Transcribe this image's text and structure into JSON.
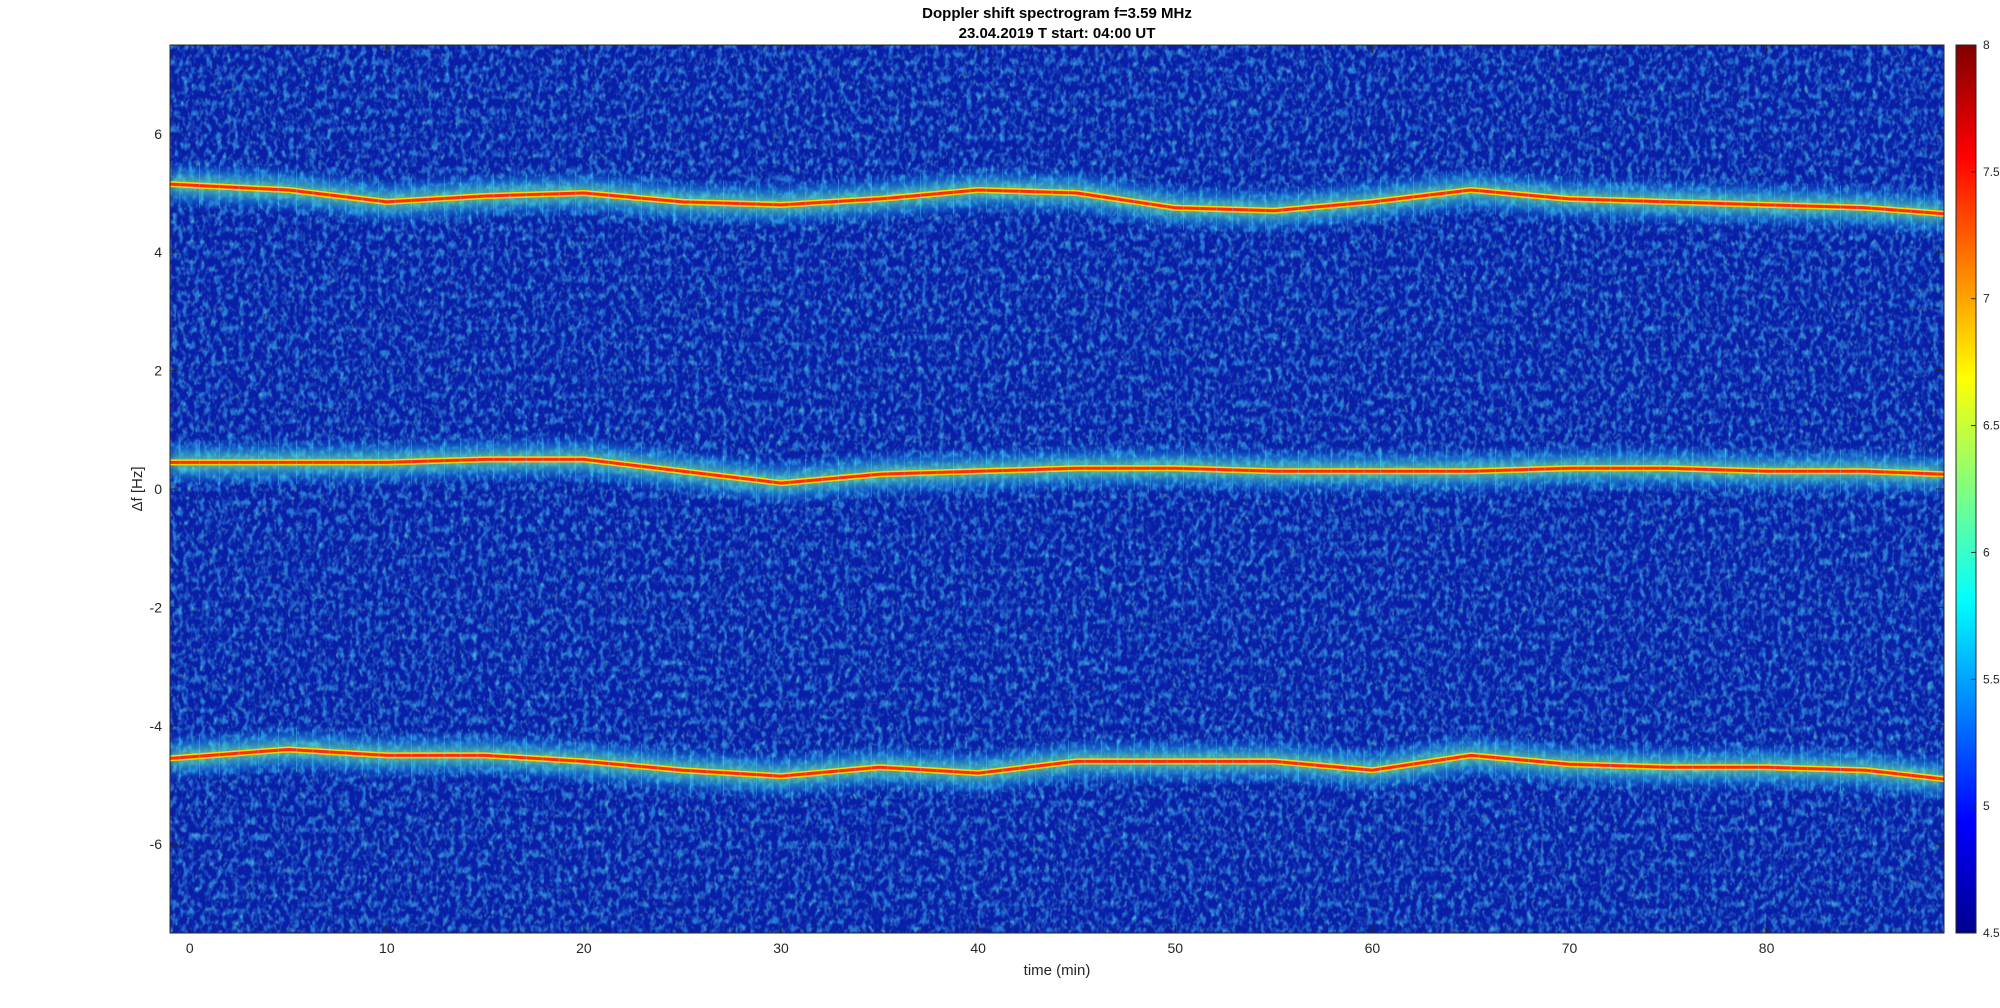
{
  "chart_data": {
    "type": "heatmap",
    "title_line1": "Doppler shift spectrogram f=3.59 MHz",
    "title_line2": "23.04.2019    T start: 04:00 UT",
    "xlabel": "time (min)",
    "ylabel": "Δf [Hz]",
    "xlim": [
      -1,
      89
    ],
    "ylim": [
      -7.5,
      7.5
    ],
    "xticks": [
      0,
      10,
      20,
      30,
      40,
      50,
      60,
      70,
      80
    ],
    "yticks": [
      -6,
      -4,
      -2,
      0,
      2,
      4,
      6
    ],
    "colormap": "jet",
    "color_range": [
      4.5,
      8
    ],
    "colorbar_ticks": [
      4.5,
      5,
      5.5,
      6,
      6.5,
      7,
      7.5,
      8
    ],
    "background_color": "#0a1fa8",
    "series": [
      {
        "x": [
          -1,
          5,
          10,
          15,
          20,
          25,
          30,
          35,
          40,
          45,
          50,
          55,
          60,
          65,
          70,
          75,
          80,
          85,
          89
        ],
        "values": [
          5.15,
          5.05,
          4.85,
          4.95,
          5.0,
          4.85,
          4.8,
          4.9,
          5.05,
          5.0,
          4.75,
          4.7,
          4.85,
          5.05,
          4.9,
          4.85,
          4.8,
          4.75,
          4.65
        ]
      },
      {
        "x": [
          -1,
          5,
          10,
          15,
          20,
          25,
          30,
          35,
          40,
          45,
          50,
          55,
          60,
          65,
          70,
          75,
          80,
          85,
          89
        ],
        "values": [
          0.45,
          0.45,
          0.45,
          0.5,
          0.5,
          0.3,
          0.1,
          0.25,
          0.3,
          0.35,
          0.35,
          0.3,
          0.3,
          0.3,
          0.35,
          0.35,
          0.3,
          0.3,
          0.25
        ]
      },
      {
        "x": [
          -1,
          5,
          10,
          15,
          20,
          25,
          30,
          35,
          40,
          45,
          50,
          55,
          60,
          65,
          70,
          75,
          80,
          85,
          89
        ],
        "values": [
          -4.55,
          -4.4,
          -4.5,
          -4.5,
          -4.6,
          -4.75,
          -4.85,
          -4.7,
          -4.8,
          -4.6,
          -4.6,
          -4.6,
          -4.75,
          -4.5,
          -4.65,
          -4.7,
          -4.7,
          -4.75,
          -4.9
        ]
      }
    ]
  }
}
